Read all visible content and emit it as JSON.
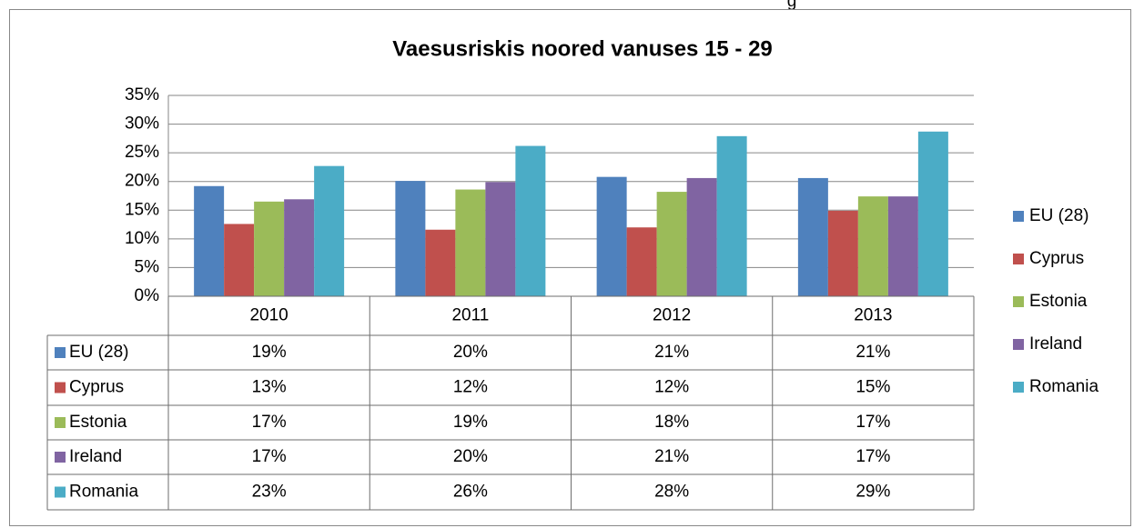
{
  "page_fragment": "g",
  "chart_data": {
    "type": "bar",
    "title": "Vaesusriskis noored vanuses 15 - 29",
    "categories": [
      "2010",
      "2011",
      "2012",
      "2013"
    ],
    "series": [
      {
        "name": "EU (28)",
        "color": "#4f81bd",
        "values": [
          19.2,
          20.1,
          20.8,
          20.6
        ],
        "value_labels": [
          "19%",
          "20%",
          "21%",
          "21%"
        ]
      },
      {
        "name": "Cyprus",
        "color": "#c0504d",
        "values": [
          12.6,
          11.6,
          12.0,
          14.9
        ],
        "value_labels": [
          "13%",
          "12%",
          "12%",
          "15%"
        ]
      },
      {
        "name": "Estonia",
        "color": "#9bbb59",
        "values": [
          16.5,
          18.6,
          18.2,
          17.4
        ],
        "value_labels": [
          "17%",
          "19%",
          "18%",
          "17%"
        ]
      },
      {
        "name": "Ireland",
        "color": "#8064a2",
        "values": [
          16.9,
          19.9,
          20.6,
          17.4
        ],
        "value_labels": [
          "17%",
          "20%",
          "21%",
          "17%"
        ]
      },
      {
        "name": "Romania",
        "color": "#4bacc6",
        "values": [
          22.7,
          26.2,
          27.9,
          28.7
        ],
        "value_labels": [
          "23%",
          "26%",
          "28%",
          "29%"
        ]
      }
    ],
    "ylim": [
      0,
      35
    ],
    "yticks": [
      {
        "value": 0,
        "label": "0%"
      },
      {
        "value": 5,
        "label": "5%"
      },
      {
        "value": 10,
        "label": "10%"
      },
      {
        "value": 15,
        "label": "15%"
      },
      {
        "value": 20,
        "label": "20%"
      },
      {
        "value": 25,
        "label": "25%"
      },
      {
        "value": 30,
        "label": "30%"
      },
      {
        "value": 35,
        "label": "35%"
      }
    ],
    "grid": true,
    "legend": "right",
    "data_table": true
  }
}
